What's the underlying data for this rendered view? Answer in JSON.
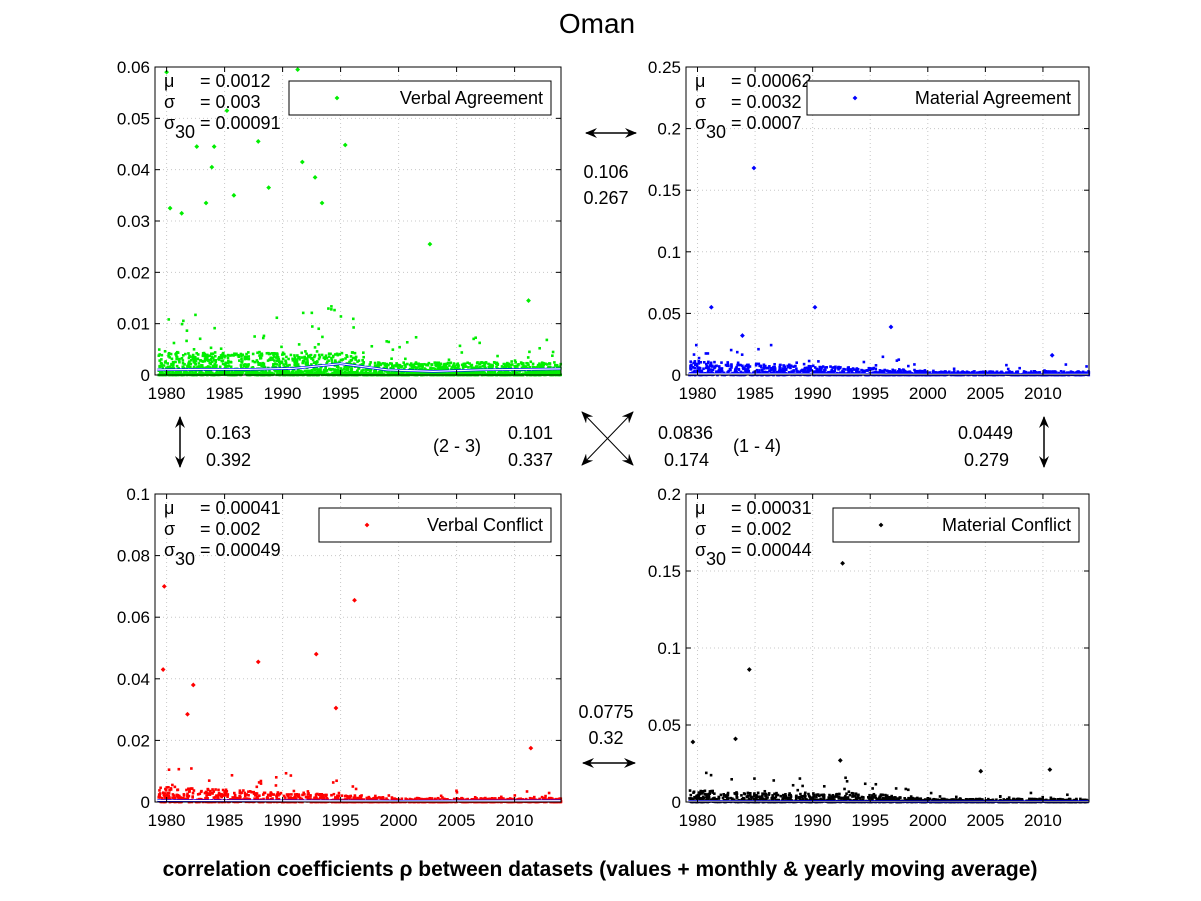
{
  "figure": {
    "title": "Oman",
    "footer": "correlation coefficients ρ between datasets (values + monthly & yearly moving average)"
  },
  "colors": {
    "verbal_agreement": "#00ee00",
    "material_agreement": "#0000ff",
    "verbal_conflict": "#ff0000",
    "material_conflict": "#000000",
    "moving_average_monthly": "#0000ff",
    "moving_average_yearly": "#ffffff"
  },
  "chart_data": [
    {
      "type": "scatter",
      "legend": "Verbal Agreement",
      "legend_position": "top-right",
      "grid": true,
      "xlim": [
        1979,
        2014
      ],
      "ylim": [
        0,
        0.06
      ],
      "xticks": [
        "1980",
        "1985",
        "1990",
        "1995",
        "2000",
        "2005",
        "2010"
      ],
      "yticks": [
        "0",
        "0.01",
        "0.02",
        "0.03",
        "0.04",
        "0.05",
        "0.06"
      ],
      "stats": {
        "mu": "0.0012",
        "sigma": "0.003",
        "sigma30": "0.00091"
      },
      "outliers": [
        {
          "x": 1980.0,
          "y": 0.059
        },
        {
          "x": 1980.3,
          "y": 0.0325
        },
        {
          "x": 1981.3,
          "y": 0.0315
        },
        {
          "x": 1982.6,
          "y": 0.0445
        },
        {
          "x": 1983.4,
          "y": 0.0335
        },
        {
          "x": 1983.9,
          "y": 0.0405
        },
        {
          "x": 1984.1,
          "y": 0.0445
        },
        {
          "x": 1985.2,
          "y": 0.0515
        },
        {
          "x": 1985.8,
          "y": 0.035
        },
        {
          "x": 1987.9,
          "y": 0.0455
        },
        {
          "x": 1988.8,
          "y": 0.0365
        },
        {
          "x": 1991.3,
          "y": 0.0595
        },
        {
          "x": 1991.7,
          "y": 0.0415
        },
        {
          "x": 1992.8,
          "y": 0.0385
        },
        {
          "x": 1993.4,
          "y": 0.0335
        },
        {
          "x": 1995.4,
          "y": 0.0448
        },
        {
          "x": 2002.7,
          "y": 0.0255
        },
        {
          "x": 2011.2,
          "y": 0.0145
        }
      ],
      "moving_average": [
        {
          "x": 1979.2,
          "y": 0.001
        },
        {
          "x": 1983.0,
          "y": 0.0011
        },
        {
          "x": 1987.0,
          "y": 0.0011
        },
        {
          "x": 1991.0,
          "y": 0.0013
        },
        {
          "x": 1995.0,
          "y": 0.0022
        },
        {
          "x": 1999.0,
          "y": 0.001
        },
        {
          "x": 2003.0,
          "y": 0.0007
        },
        {
          "x": 2007.0,
          "y": 0.001
        },
        {
          "x": 2011.0,
          "y": 0.0011
        },
        {
          "x": 2014.0,
          "y": 0.0012
        }
      ]
    },
    {
      "type": "scatter",
      "legend": "Material Agreement",
      "legend_position": "top-right",
      "grid": true,
      "xlim": [
        1979,
        2014
      ],
      "ylim": [
        0,
        0.25
      ],
      "xticks": [
        "1980",
        "1985",
        "1990",
        "1995",
        "2000",
        "2005",
        "2010"
      ],
      "yticks": [
        "0",
        "0.05",
        "0.1",
        "0.15",
        "0.2",
        "0.25"
      ],
      "stats": {
        "mu": "0.00062",
        "sigma": "0.0032",
        "sigma30": "0.0007"
      },
      "outliers": [
        {
          "x": 1984.9,
          "y": 0.168
        },
        {
          "x": 1981.2,
          "y": 0.055
        },
        {
          "x": 1990.2,
          "y": 0.055
        },
        {
          "x": 1996.8,
          "y": 0.039
        },
        {
          "x": 1983.9,
          "y": 0.032
        },
        {
          "x": 2010.8,
          "y": 0.016
        }
      ],
      "moving_average": [
        {
          "x": 1979.2,
          "y": 0.0008
        },
        {
          "x": 1985.0,
          "y": 0.0007
        },
        {
          "x": 1995.0,
          "y": 0.0006
        },
        {
          "x": 2005.0,
          "y": 0.0004
        },
        {
          "x": 2014.0,
          "y": 0.0005
        }
      ]
    },
    {
      "type": "scatter",
      "legend": "Verbal Conflict",
      "legend_position": "top-right",
      "grid": true,
      "xlim": [
        1979,
        2014
      ],
      "ylim": [
        0,
        0.1
      ],
      "xticks": [
        "1980",
        "1985",
        "1990",
        "1995",
        "2000",
        "2005",
        "2010"
      ],
      "yticks": [
        "0",
        "0.02",
        "0.04",
        "0.06",
        "0.08",
        "0.1"
      ],
      "stats": {
        "mu": "0.00041",
        "sigma": "0.002",
        "sigma30": "0.00049"
      },
      "outliers": [
        {
          "x": 1979.8,
          "y": 0.07
        },
        {
          "x": 1979.7,
          "y": 0.043
        },
        {
          "x": 1982.3,
          "y": 0.038
        },
        {
          "x": 1987.9,
          "y": 0.0455
        },
        {
          "x": 1992.9,
          "y": 0.048
        },
        {
          "x": 1996.2,
          "y": 0.0655
        },
        {
          "x": 1994.6,
          "y": 0.0305
        },
        {
          "x": 1981.8,
          "y": 0.0285
        },
        {
          "x": 2011.4,
          "y": 0.0175
        }
      ],
      "moving_average": [
        {
          "x": 1979.2,
          "y": 0.0005
        },
        {
          "x": 1990.0,
          "y": 0.0004
        },
        {
          "x": 2000.0,
          "y": 0.0003
        },
        {
          "x": 2014.0,
          "y": 0.0004
        }
      ]
    },
    {
      "type": "scatter",
      "legend": "Material Conflict",
      "legend_position": "top-right",
      "grid": true,
      "xlim": [
        1979,
        2014
      ],
      "ylim": [
        0,
        0.2
      ],
      "xticks": [
        "1980",
        "1985",
        "1990",
        "1995",
        "2000",
        "2005",
        "2010"
      ],
      "yticks": [
        "0",
        "0.05",
        "0.1",
        "0.15",
        "0.2"
      ],
      "stats": {
        "mu": "0.00031",
        "sigma": "0.002",
        "sigma30": "0.00044"
      },
      "outliers": [
        {
          "x": 1992.6,
          "y": 0.155
        },
        {
          "x": 1984.5,
          "y": 0.086
        },
        {
          "x": 1983.3,
          "y": 0.041
        },
        {
          "x": 1979.6,
          "y": 0.039
        },
        {
          "x": 1992.4,
          "y": 0.027
        },
        {
          "x": 2004.6,
          "y": 0.02
        },
        {
          "x": 2010.6,
          "y": 0.021
        }
      ],
      "moving_average": [
        {
          "x": 1979.2,
          "y": 0.0004
        },
        {
          "x": 1990.0,
          "y": 0.0003
        },
        {
          "x": 2000.0,
          "y": 0.0002
        },
        {
          "x": 2014.0,
          "y": 0.0003
        }
      ]
    }
  ],
  "correlations": {
    "top": {
      "values": [
        "0.106",
        "0.267"
      ]
    },
    "bottom": {
      "values": [
        "0.0775",
        "0.32"
      ]
    },
    "left": {
      "values": [
        "0.163",
        "0.392"
      ]
    },
    "right": {
      "values": [
        "0.0449",
        "0.279"
      ]
    },
    "diag_2_3": {
      "label": "(2 - 3)",
      "values": [
        "0.101",
        "0.337"
      ]
    },
    "diag_1_4": {
      "label": "(1 - 4)",
      "values": [
        "0.0836",
        "0.174"
      ]
    }
  }
}
